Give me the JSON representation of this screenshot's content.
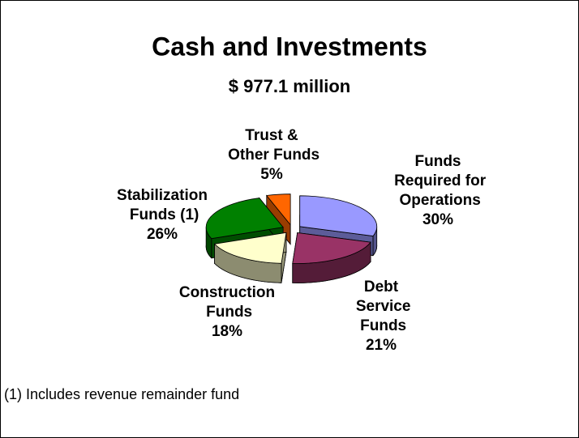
{
  "chart_data": {
    "type": "pie3d",
    "title": "Cash and Investments",
    "subtitle": "$ 977.1 million",
    "categories": [
      "Funds Required for Operations",
      "Debt Service Funds",
      "Construction Funds",
      "Stabilization Funds (1)",
      "Trust & Other Funds"
    ],
    "values": [
      30,
      21,
      18,
      26,
      5
    ],
    "value_labels": [
      "30%",
      "21%",
      "18%",
      "26%",
      "5%"
    ],
    "colors": [
      "#9999ff",
      "#993366",
      "#ffffcc",
      "#008000",
      "#ff6600"
    ],
    "footnote": "(1) Includes revenue remainder fund"
  }
}
